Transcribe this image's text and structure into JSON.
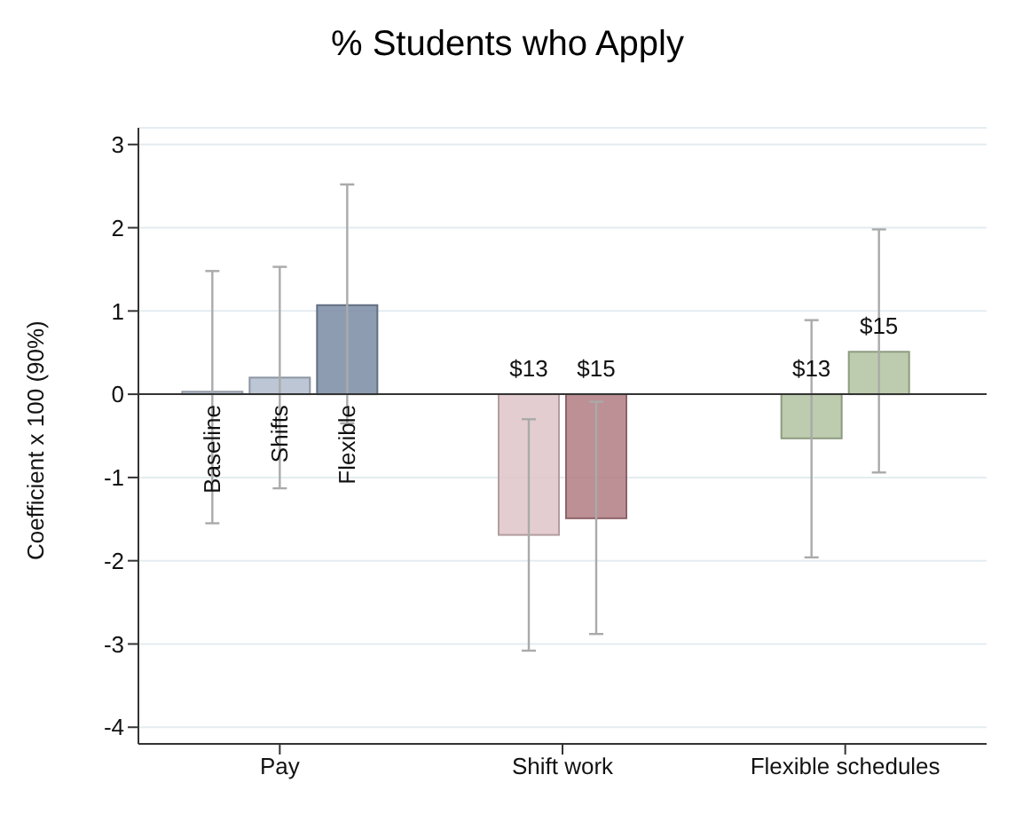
{
  "chart_data": {
    "type": "bar",
    "title": "% Students who Apply",
    "ylabel": "Coefficient x 100 (90%)",
    "categories": [
      "Pay",
      "Shift work",
      "Flexible schedules"
    ],
    "series": [
      {
        "name": "Baseline",
        "color": "#b4bfcf",
        "values": [
          0.03,
          null,
          null
        ],
        "errors": [
          [
            -1.55,
            1.48
          ],
          null,
          null
        ]
      },
      {
        "name": "Shifts",
        "color": "#b0bccd",
        "values": [
          0.2,
          null,
          null
        ],
        "errors": [
          [
            -1.13,
            1.53
          ],
          null,
          null
        ]
      },
      {
        "name": "Flexible",
        "color": "#7a8ba3",
        "values": [
          1.07,
          null,
          null
        ],
        "errors": [
          [
            -0.35,
            2.52
          ],
          null,
          null
        ]
      },
      {
        "name": "$13",
        "colors": [
          null,
          "#dfc4c8",
          "#b2c2a0"
        ],
        "values": [
          null,
          -1.69,
          -0.53
        ],
        "errors": [
          null,
          [
            -3.08,
            -0.3
          ],
          [
            -1.96,
            0.89
          ]
        ]
      },
      {
        "name": "$15",
        "colors": [
          null,
          "#b27c82",
          "#b2c2a0"
        ],
        "values": [
          null,
          -1.49,
          0.51
        ],
        "errors": [
          null,
          [
            -2.88,
            -0.09
          ],
          [
            -0.94,
            1.98
          ]
        ]
      }
    ],
    "ylim": [
      -4.2,
      3.2
    ],
    "yticks": [
      -4,
      -3,
      -2,
      -1,
      0,
      1,
      2,
      3
    ],
    "grid": "y",
    "ref_lines": [
      {
        "axis": "y",
        "value": 0,
        "color": "#333333"
      }
    ]
  }
}
